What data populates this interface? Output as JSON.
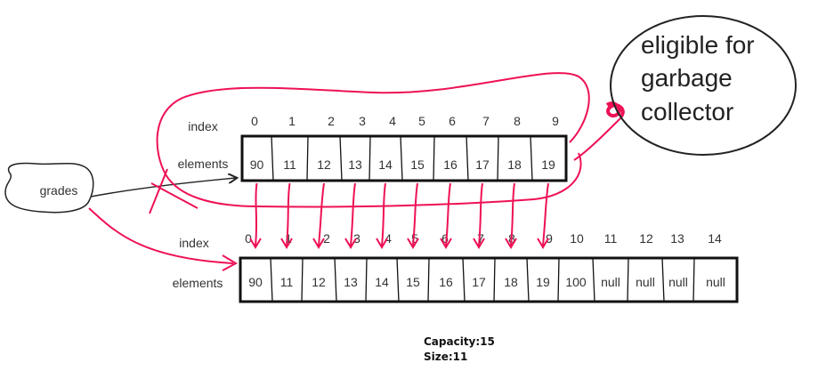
{
  "colors": {
    "ink": "#111111",
    "annotation": "#ee1155"
  },
  "grades_label": "grades",
  "old_array": {
    "index_label": "index",
    "elements_label": "elements",
    "indices": [
      "0",
      "1",
      "2",
      "3",
      "4",
      "5",
      "6",
      "7",
      "8",
      "9"
    ],
    "values": [
      "90",
      "11",
      "12",
      "13",
      "14",
      "15",
      "16",
      "17",
      "18",
      "19"
    ]
  },
  "new_array": {
    "index_label": "index",
    "elements_label": "elements",
    "indices": [
      "0",
      "1",
      "2",
      "3",
      "4",
      "5",
      "6",
      "7",
      "8",
      "9",
      "10",
      "11",
      "12",
      "13",
      "14"
    ],
    "values": [
      "90",
      "11",
      "12",
      "13",
      "14",
      "15",
      "16",
      "17",
      "18",
      "19",
      "100",
      "null",
      "null",
      "null",
      "null"
    ]
  },
  "gc_note": {
    "lines": [
      "eligible for",
      "garbage",
      "collector"
    ]
  },
  "summary": {
    "capacity": "Capacity:15",
    "size": "Size:11"
  }
}
